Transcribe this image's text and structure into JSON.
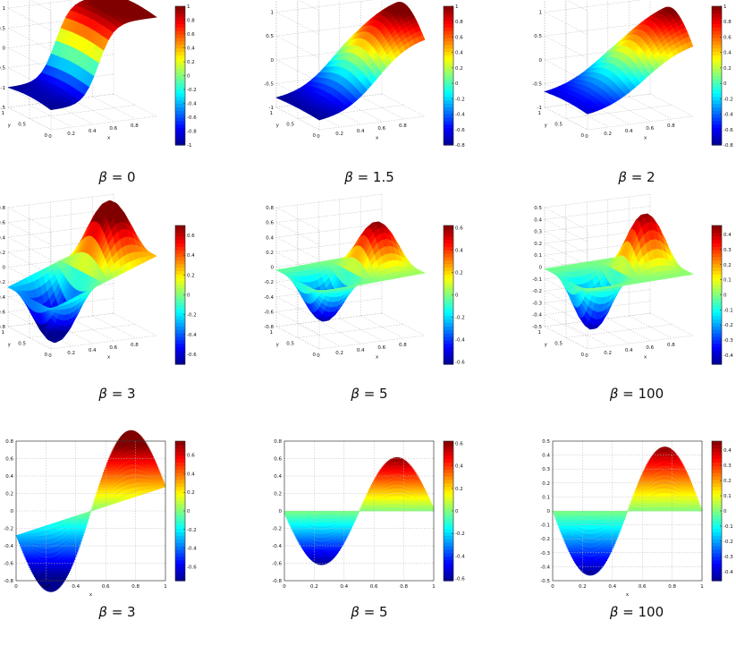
{
  "chart_data": [
    {
      "type": "surface",
      "caption": {
        "symbol": "β",
        "sep": " = ",
        "value": "0"
      },
      "beta": 0,
      "zlim": [
        -1.5,
        1.5
      ],
      "zticks": [
        "-1.5",
        "-1",
        "-0.5",
        "0",
        "0.5",
        "1",
        "1.5"
      ],
      "xticks": [
        "0",
        "0.2",
        "0.4",
        "0.6",
        "0.8"
      ],
      "yticks": [
        "0",
        "0.5",
        "1"
      ],
      "xlabel": "x",
      "ylabel": "y",
      "clim": [
        -1,
        1
      ],
      "cticks": [
        "-1",
        "-0.8",
        "-0.6",
        "-0.4",
        "-0.2",
        "0",
        "0.2",
        "0.4",
        "0.6",
        "0.8",
        "1"
      ]
    },
    {
      "type": "surface",
      "caption": {
        "symbol": "β",
        "sep": " = ",
        "value": "1.5"
      },
      "beta": 1.5,
      "zlim": [
        -1,
        1.5
      ],
      "zticks": [
        "-1",
        "-0.5",
        "0",
        "0.5",
        "1",
        "1.5"
      ],
      "xticks": [
        "0",
        "0.2",
        "0.4",
        "0.6",
        "0.8"
      ],
      "yticks": [
        "0",
        "0.5",
        "1"
      ],
      "xlabel": "x",
      "ylabel": "y",
      "clim": [
        -0.8,
        1
      ],
      "cticks": [
        "-0.8",
        "-0.6",
        "-0.4",
        "-0.2",
        "0",
        "0.2",
        "0.4",
        "0.6",
        "0.8",
        "1"
      ]
    },
    {
      "type": "surface",
      "caption": {
        "symbol": "β",
        "sep": " = ",
        "value": "2"
      },
      "beta": 2,
      "zlim": [
        -1,
        1.5
      ],
      "zticks": [
        "-1",
        "-0.5",
        "0",
        "0.5",
        "1",
        "1.5"
      ],
      "xticks": [
        "0",
        "0.2",
        "0.4",
        "0.6",
        "0.8"
      ],
      "yticks": [
        "0",
        "0.5",
        "1"
      ],
      "xlabel": "x",
      "ylabel": "y",
      "clim": [
        -0.8,
        1
      ],
      "cticks": [
        "-0.8",
        "-0.6",
        "-0.4",
        "-0.2",
        "0",
        "0.2",
        "0.4",
        "0.6",
        "0.8",
        "1"
      ]
    },
    {
      "type": "surface",
      "caption": {
        "symbol": "β",
        "sep": " = ",
        "value": "3"
      },
      "beta": 3,
      "zlim": [
        -0.8,
        0.8
      ],
      "zticks": [
        "-0.8",
        "-0.6",
        "-0.4",
        "-0.2",
        "0",
        "0.2",
        "0.4",
        "0.6",
        "0.8"
      ],
      "xticks": [
        "0",
        "0.2",
        "0.4",
        "0.6",
        "0.8"
      ],
      "yticks": [
        "0",
        "0.5",
        "1"
      ],
      "xlabel": "x",
      "ylabel": "y",
      "clim": [
        -0.7,
        0.7
      ],
      "cticks": [
        "-0.6",
        "-0.4",
        "-0.2",
        "0",
        "0.2",
        "0.4",
        "0.6"
      ]
    },
    {
      "type": "surface",
      "caption": {
        "symbol": "β",
        "sep": " = ",
        "value": "5"
      },
      "beta": 5,
      "zlim": [
        -0.8,
        0.8
      ],
      "zticks": [
        "-0.8",
        "-0.6",
        "-0.4",
        "-0.2",
        "0",
        "0.2",
        "0.4",
        "0.6",
        "0.8"
      ],
      "xticks": [
        "0",
        "0.2",
        "0.4",
        "0.6",
        "0.8"
      ],
      "yticks": [
        "0",
        "0.5",
        "1"
      ],
      "xlabel": "x",
      "ylabel": "y",
      "clim": [
        -0.62,
        0.62
      ],
      "cticks": [
        "-0.6",
        "-0.4",
        "-0.2",
        "0",
        "0.2",
        "0.4",
        "0.6"
      ]
    },
    {
      "type": "surface",
      "caption": {
        "symbol": "β",
        "sep": " = ",
        "value": "100"
      },
      "beta": 100,
      "zlim": [
        -0.5,
        0.5
      ],
      "zticks": [
        "-0.5",
        "-0.4",
        "-0.3",
        "-0.2",
        "-0.1",
        "0",
        "0.1",
        "0.2",
        "0.3",
        "0.4",
        "0.5"
      ],
      "xticks": [
        "0",
        "0.2",
        "0.4",
        "0.6",
        "0.8"
      ],
      "yticks": [
        "0",
        "0.5",
        "1"
      ],
      "xlabel": "x",
      "ylabel": "y",
      "clim": [
        -0.46,
        0.46
      ],
      "cticks": [
        "-0.4",
        "-0.3",
        "-0.2",
        "-0.1",
        "0",
        "0.1",
        "0.2",
        "0.3",
        "0.4"
      ]
    },
    {
      "type": "area",
      "caption": {
        "symbol": "β",
        "sep": " = ",
        "value": "3"
      },
      "beta": 3,
      "xlim": [
        0,
        1
      ],
      "ylim": [
        -0.8,
        0.8
      ],
      "xticks": [
        "0",
        "0.2",
        "0.4",
        "0.6",
        "0.8",
        "1"
      ],
      "yticks": [
        "-0.8",
        "-0.6",
        "-0.4",
        "-0.2",
        "0",
        "0.2",
        "0.4",
        "0.6",
        "0.8"
      ],
      "xlabel": "x",
      "clim": [
        -0.75,
        0.75
      ],
      "cticks": [
        "-0.6",
        "-0.4",
        "-0.2",
        "0",
        "0.2",
        "0.4",
        "0.6"
      ]
    },
    {
      "type": "area",
      "caption": {
        "symbol": "β",
        "sep": " = ",
        "value": "5"
      },
      "beta": 5,
      "xlim": [
        0,
        1
      ],
      "ylim": [
        -0.8,
        0.8
      ],
      "xticks": [
        "0",
        "0.2",
        "0.4",
        "0.6",
        "0.8",
        "1"
      ],
      "yticks": [
        "-0.8",
        "-0.6",
        "-0.4",
        "-0.2",
        "0",
        "0.2",
        "0.4",
        "0.6",
        "0.8"
      ],
      "xlabel": "",
      "clim": [
        -0.62,
        0.62
      ],
      "cticks": [
        "-0.6",
        "-0.4",
        "-0.2",
        "0",
        "0.2",
        "0.4",
        "0.6"
      ]
    },
    {
      "type": "area",
      "caption": {
        "symbol": "β",
        "sep": " = ",
        "value": "100"
      },
      "beta": 100,
      "xlim": [
        0,
        1
      ],
      "ylim": [
        -0.5,
        0.5
      ],
      "xticks": [
        "0",
        "0.2",
        "0.4",
        "0.6",
        "0.8",
        "1"
      ],
      "yticks": [
        "-0.5",
        "-0.4",
        "-0.3",
        "-0.2",
        "-0.1",
        "0",
        "0.1",
        "0.2",
        "0.3",
        "0.4",
        "0.5"
      ],
      "xlabel": "x",
      "clim": [
        -0.46,
        0.46
      ],
      "cticks": [
        "-0.4",
        "-0.3",
        "-0.2",
        "-0.1",
        "0",
        "0.1",
        "0.2",
        "0.3",
        "0.4"
      ]
    }
  ],
  "colormap": [
    "#00008f",
    "#0000ff",
    "#00ffff",
    "#ffff00",
    "#ff0000",
    "#800000"
  ],
  "colors": {
    "grid": "#b8b8b8",
    "axis": "#222222",
    "text": "#111111"
  }
}
